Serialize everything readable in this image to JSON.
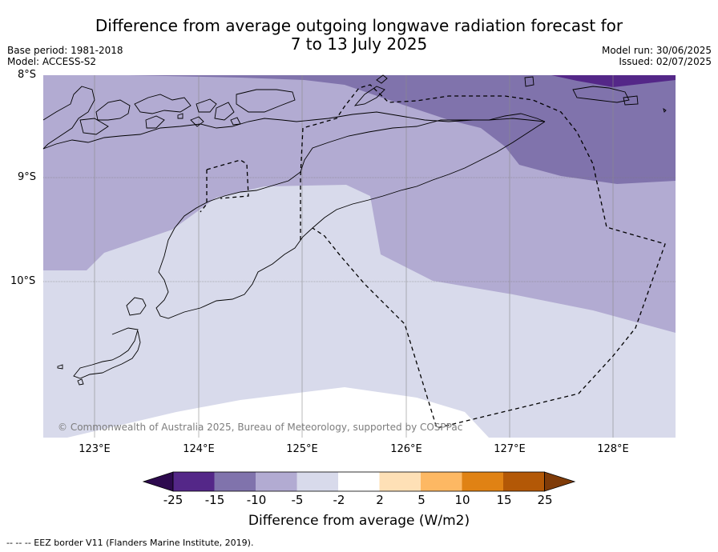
{
  "title_line1": "Difference from average outgoing longwave radiation forecast for",
  "title_line2": "7 to 13 July 2025",
  "base_period": "Base period: 1981-2018",
  "model": "Model: ACCESS-S2",
  "model_run": "Model run: 30/06/2025",
  "issued": "Issued: 02/07/2025",
  "lat_labels": [
    "8°S",
    "9°S",
    "10°S"
  ],
  "lon_labels": [
    "123°E",
    "124°E",
    "125°E",
    "126°E",
    "127°E",
    "128°E"
  ],
  "copyright": "© Commonwealth of Australia 2025, Bureau of Meteorology, supported by COSPPac",
  "colorbar": {
    "ticks": [
      "-25",
      "-15",
      "-10",
      "-5",
      "-2",
      "2",
      "5",
      "10",
      "15",
      "25"
    ],
    "colors": [
      "#2d0a4e",
      "#542788",
      "#8073ac",
      "#b2abd2",
      "#d8daeb",
      "#ffffff",
      "#fee0b6",
      "#fdb863",
      "#e08214",
      "#b35806",
      "#7f3b08"
    ],
    "label": "Difference from average (W/m2)"
  },
  "eez_legend": "-- -- -- EEZ border V11 (Flanders Marine Institute, 2019)."
}
